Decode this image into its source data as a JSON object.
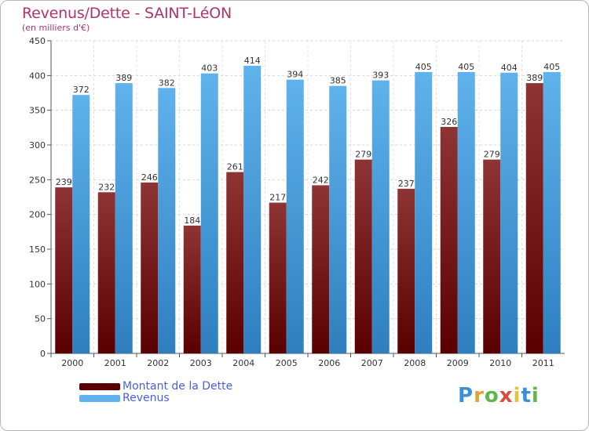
{
  "title": "Revenus/Dette - SAINT-LéON",
  "subtitle": "(en milliers d'€)",
  "colors": {
    "dette_dark": "#5a0000",
    "dette_light": "#8e3434",
    "revenus_dark": "#2f7fbf",
    "revenus_light": "#5fb2ec",
    "title": "#b0336b",
    "legend_text": "#4a5ee5"
  },
  "chart_data": {
    "type": "bar",
    "categories": [
      "2000",
      "2001",
      "2002",
      "2003",
      "2004",
      "2005",
      "2006",
      "2007",
      "2008",
      "2009",
      "2010",
      "2011"
    ],
    "series": [
      {
        "name": "Montant de la Dette",
        "values": [
          239,
          232,
          246,
          184,
          261,
          217,
          242,
          279,
          237,
          326,
          279,
          389
        ]
      },
      {
        "name": "Revenus",
        "values": [
          372,
          389,
          382,
          403,
          414,
          394,
          385,
          393,
          405,
          405,
          404,
          405
        ]
      }
    ],
    "ylim": [
      0,
      450
    ],
    "yticks": [
      0,
      50,
      100,
      150,
      200,
      250,
      300,
      350,
      400,
      450
    ],
    "grid": true,
    "legend": "bottom-left"
  },
  "logo": {
    "letters": [
      "P",
      "r",
      "o",
      "x",
      "i",
      "t",
      "i"
    ],
    "colors": [
      "#3a8fd6",
      "#e8a030",
      "#5cb84a",
      "#d94c3a",
      "#e8c040",
      "#3a8fd6",
      "#5cb84a"
    ]
  }
}
